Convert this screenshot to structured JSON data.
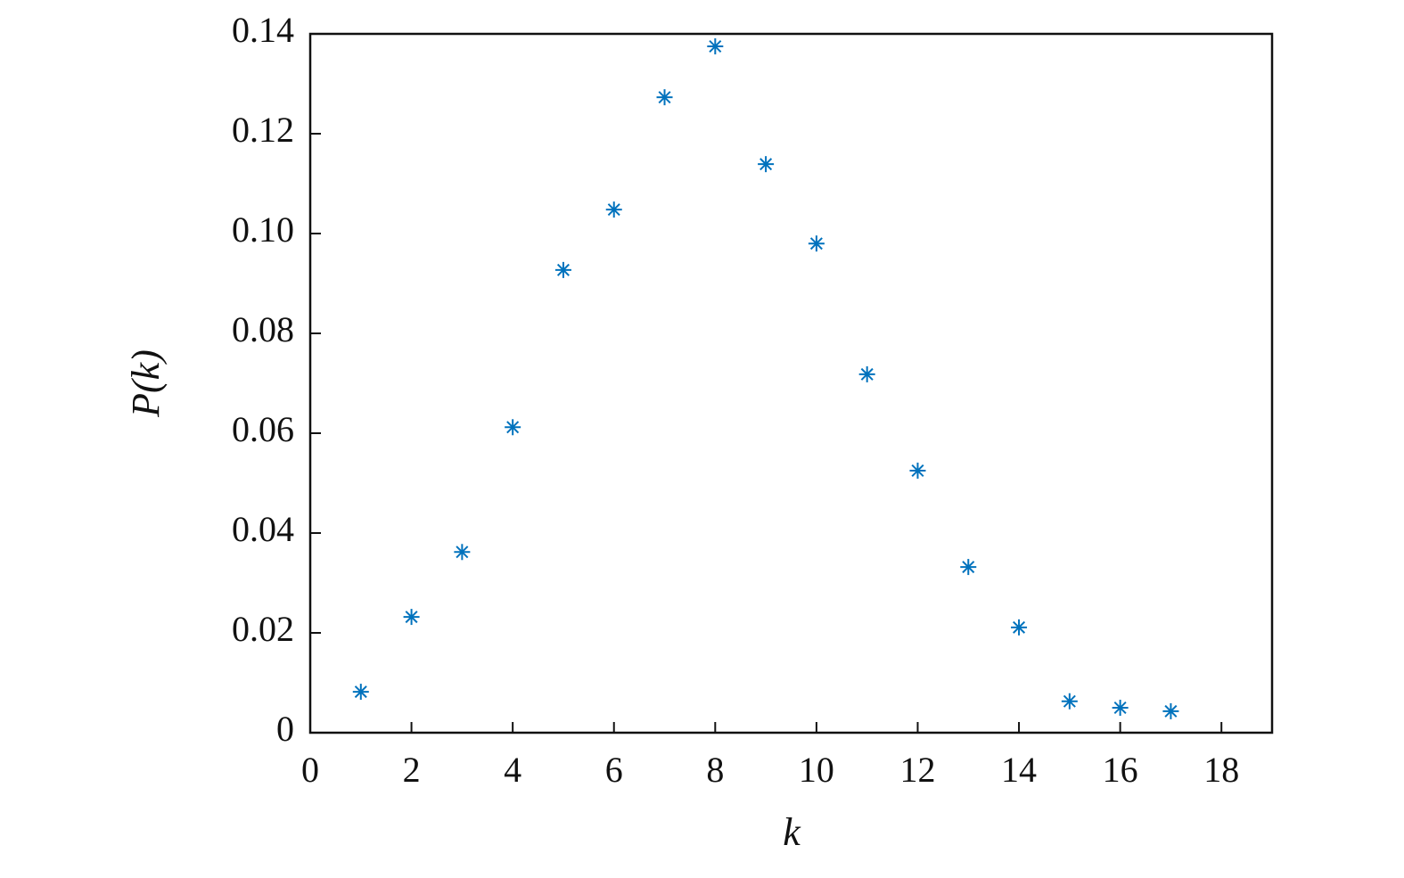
{
  "chart_data": {
    "type": "scatter",
    "x_label": "k",
    "y_label": "P(k)",
    "series": [
      {
        "color": "#0072bd",
        "marker": "asterisk",
        "x": [
          1,
          2,
          3,
          4,
          5,
          6,
          7,
          8,
          9,
          10,
          11,
          12,
          13,
          14,
          15,
          16,
          17
        ],
        "values": [
          0.0082,
          0.0232,
          0.0362,
          0.0612,
          0.0927,
          0.1048,
          0.1273,
          0.1375,
          0.1139,
          0.098,
          0.0718,
          0.0525,
          0.0332,
          0.0211,
          0.0063,
          0.005,
          0.0043
        ]
      }
    ],
    "xlim": [
      0,
      19
    ],
    "xticks": [
      0,
      2,
      4,
      6,
      8,
      10,
      12,
      14,
      16,
      18
    ],
    "ylim": [
      0,
      0.14
    ],
    "yticks": [
      0,
      0.02,
      0.04,
      0.06,
      0.08,
      {
        "value": 0.1,
        "label": "0.10"
      },
      0.12,
      0.14
    ],
    "grid": false
  }
}
